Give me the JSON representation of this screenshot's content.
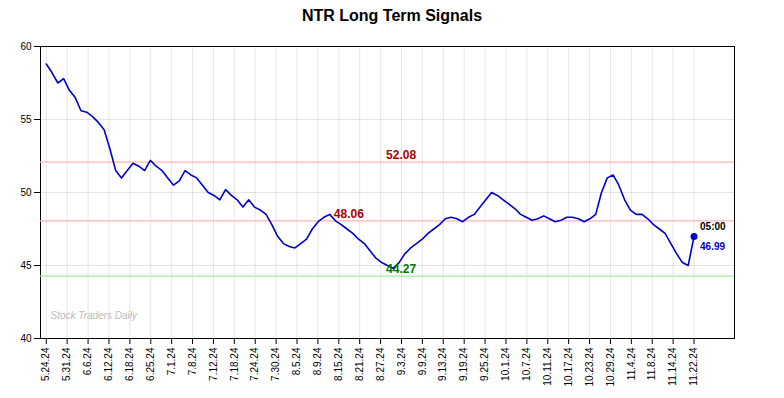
{
  "chart_data": {
    "type": "line",
    "title": "NTR Long Term Signals",
    "x": [
      0,
      1,
      2,
      3,
      4,
      5,
      6,
      7,
      8,
      9,
      10,
      11,
      12,
      13,
      14,
      15,
      16,
      17,
      18,
      19,
      20,
      21,
      22,
      23,
      24,
      25,
      26,
      27,
      28,
      29,
      30,
      31,
      32,
      33,
      34,
      35,
      36,
      37,
      38,
      39,
      40,
      41,
      42,
      43,
      44,
      45,
      46,
      47,
      48,
      49,
      50,
      51,
      52,
      53,
      54,
      55,
      56,
      57,
      58,
      59,
      60,
      61,
      62,
      63,
      64,
      65,
      66,
      67,
      68,
      69,
      70,
      71,
      72,
      73,
      74,
      75,
      76,
      77,
      78,
      79,
      80,
      81,
      82,
      83,
      84,
      85,
      86,
      87,
      88,
      89,
      90,
      91,
      92,
      93,
      94,
      95,
      96,
      97,
      98,
      99,
      100,
      101,
      102,
      103,
      104,
      105,
      106,
      107,
      108,
      109,
      110,
      111,
      112
    ],
    "values": [
      58.8,
      58.2,
      57.5,
      57.8,
      57.0,
      56.5,
      55.6,
      55.5,
      55.2,
      54.8,
      54.3,
      53.0,
      51.5,
      51.0,
      51.5,
      52.0,
      51.8,
      51.5,
      52.2,
      51.8,
      51.5,
      51.0,
      50.5,
      50.8,
      51.5,
      51.2,
      51.0,
      50.5,
      50.0,
      49.8,
      49.5,
      50.2,
      49.8,
      49.5,
      49.0,
      49.5,
      49.0,
      48.8,
      48.5,
      47.8,
      47.0,
      46.5,
      46.3,
      46.2,
      46.5,
      46.8,
      47.5,
      48.0,
      48.3,
      48.5,
      48.06,
      47.8,
      47.5,
      47.2,
      46.8,
      46.5,
      46.0,
      45.5,
      45.2,
      45.0,
      44.8,
      45.2,
      45.8,
      46.2,
      46.5,
      46.8,
      47.2,
      47.5,
      47.8,
      48.2,
      48.3,
      48.2,
      48.0,
      48.3,
      48.5,
      49.0,
      49.5,
      50.0,
      49.8,
      49.5,
      49.2,
      48.9,
      48.5,
      48.3,
      48.1,
      48.2,
      48.4,
      48.2,
      48.0,
      48.1,
      48.3,
      48.3,
      48.2,
      48.0,
      48.2,
      48.5,
      50.0,
      51.0,
      51.2,
      50.5,
      49.5,
      48.8,
      48.5,
      48.5,
      48.2,
      47.8,
      47.5,
      47.2,
      46.5,
      45.8,
      45.2,
      45.0,
      46.99
    ],
    "color": "#0000cc",
    "xlim": [
      -1,
      119
    ],
    "xticks": [
      {
        "value": 0,
        "label": "5.24.24"
      },
      {
        "value": 3.612903,
        "label": "5.31.24"
      },
      {
        "value": 7.225806,
        "label": "6.6.24"
      },
      {
        "value": 10.83871,
        "label": "6.12.24"
      },
      {
        "value": 14.451613,
        "label": "6.18.24"
      },
      {
        "value": 18.064516,
        "label": "6.25.24"
      },
      {
        "value": 21.677419,
        "label": "7.1.24"
      },
      {
        "value": 25.290323,
        "label": "7.8.24"
      },
      {
        "value": 28.903226,
        "label": "7.12.24"
      },
      {
        "value": 32.516129,
        "label": "7.18.24"
      },
      {
        "value": 36.129032,
        "label": "7.24.24"
      },
      {
        "value": 39.741935,
        "label": "7.30.24"
      },
      {
        "value": 43.354839,
        "label": "8.5.24"
      },
      {
        "value": 46.967742,
        "label": "8.9.24"
      },
      {
        "value": 50.580645,
        "label": "8.15.24"
      },
      {
        "value": 54.193548,
        "label": "8.21.24"
      },
      {
        "value": 57.806452,
        "label": "8.27.24"
      },
      {
        "value": 61.419355,
        "label": "9.3.24"
      },
      {
        "value": 65.032258,
        "label": "9.9.24"
      },
      {
        "value": 68.645161,
        "label": "9.13.24"
      },
      {
        "value": 72.258065,
        "label": "9.19.24"
      },
      {
        "value": 75.870968,
        "label": "9.25.24"
      },
      {
        "value": 79.483871,
        "label": "10.1.24"
      },
      {
        "value": 83.096774,
        "label": "10.7.24"
      },
      {
        "value": 86.709677,
        "label": "10.11.24"
      },
      {
        "value": 90.322581,
        "label": "10.17.24"
      },
      {
        "value": 93.935484,
        "label": "10.23.24"
      },
      {
        "value": 97.548387,
        "label": "10.29.24"
      },
      {
        "value": 101.16129,
        "label": "11.4.24"
      },
      {
        "value": 104.774194,
        "label": "11.8.24"
      },
      {
        "value": 108.387097,
        "label": "11.14.24"
      },
      {
        "value": 112,
        "label": "11.22.24"
      }
    ],
    "ylim": [
      40,
      60
    ],
    "yticks": [
      40,
      45,
      50,
      55,
      60
    ],
    "grid": true,
    "hlines": [
      {
        "value": 52.08,
        "label": "52.08",
        "color": "#ffb3b3",
        "label_color": "#aa0000"
      },
      {
        "value": 48.06,
        "label": "48.06",
        "color": "#ffb3b3",
        "label_color": "#aa0000"
      },
      {
        "value": 44.27,
        "label": "44.27",
        "color": "#99ee99",
        "label_color": "#007700"
      }
    ],
    "last_point": {
      "x": 112,
      "y": 46.99,
      "label": "46.99",
      "color": "#0000cc",
      "time_label": "05:00",
      "time_color": "#000000"
    },
    "watermark": {
      "text": "Stock Traders Daily",
      "color": "#bbbbbb"
    }
  }
}
